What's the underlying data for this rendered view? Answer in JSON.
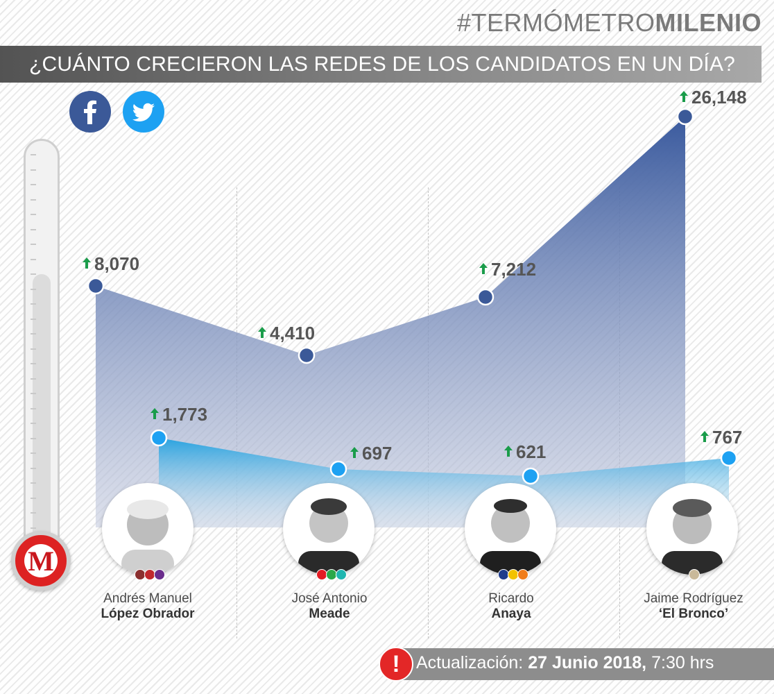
{
  "header": {
    "hashtag_prefix": "#TERMÓMETRO",
    "hashtag_bold": "MILENIO",
    "title": "¿CUÁNTO CRECIERON LAS REDES DE LOS CANDIDATOS EN UN DÍA?"
  },
  "colors": {
    "facebook": "#3b5998",
    "twitter": "#1da1f2",
    "up_arrow": "#1a9c4a",
    "brand_red": "#c8171d"
  },
  "logo_letter": "M",
  "chart_data": {
    "type": "area",
    "categories": [
      "Andrés Manuel López Obrador",
      "José Antonio Meade",
      "Ricardo Anaya",
      "Jaime Rodríguez 'El Bronco'"
    ],
    "series": [
      {
        "name": "Facebook",
        "values": [
          8070,
          4410,
          7212,
          26148
        ],
        "labels": [
          "8,070",
          "4,410",
          "7,212",
          "26,148"
        ]
      },
      {
        "name": "Twitter",
        "values": [
          1773,
          697,
          621,
          767
        ],
        "labels": [
          "1,773",
          "697",
          "621",
          "767"
        ]
      }
    ],
    "title": "¿CUÁNTO CRECIERON LAS REDES DE LOS CANDIDATOS EN UN DÍA?"
  },
  "candidates": [
    {
      "first": "Andrés Manuel",
      "last": "López Obrador",
      "party_colors": [
        "#8b2f2f",
        "#c0272d",
        "#6a2c8c"
      ]
    },
    {
      "first": "José Antonio",
      "last": "Meade",
      "party_colors": [
        "#e31b23",
        "#2aa84a",
        "#1fb6b0"
      ]
    },
    {
      "first": "Ricardo",
      "last": "Anaya",
      "party_colors": [
        "#1f3d8c",
        "#f2c200",
        "#f07d1a"
      ]
    },
    {
      "first": "Jaime Rodríguez",
      "last": "‘El Bronco’",
      "party_colors": [
        "#c9b99a"
      ]
    }
  ],
  "update": {
    "label": "Actualización:",
    "date": "27 Junio 2018,",
    "time": "7:30 hrs",
    "icon": "!"
  }
}
